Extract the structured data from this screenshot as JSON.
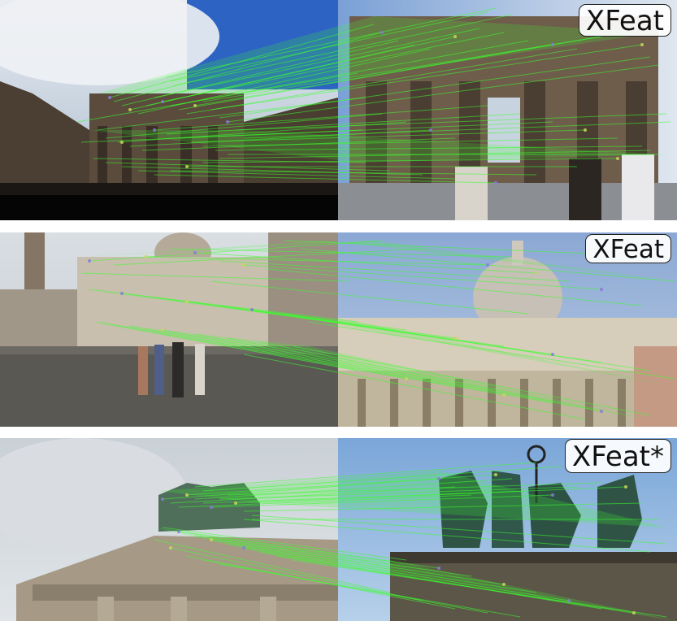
{
  "panels": [
    {
      "label": "XFeat",
      "scene": "brandenburg-gate-wide"
    },
    {
      "label": "XFeat",
      "scene": "st-peters-basilica"
    },
    {
      "label": "XFeat*",
      "scene": "brandenburg-gate-quadriga"
    }
  ],
  "colors": {
    "match_line": "#3dff2e",
    "keypoint_a": "#8a7bd6",
    "keypoint_b": "#c9d65a",
    "sky_blue": "#3f72c9",
    "stone": "#6b5a48"
  }
}
